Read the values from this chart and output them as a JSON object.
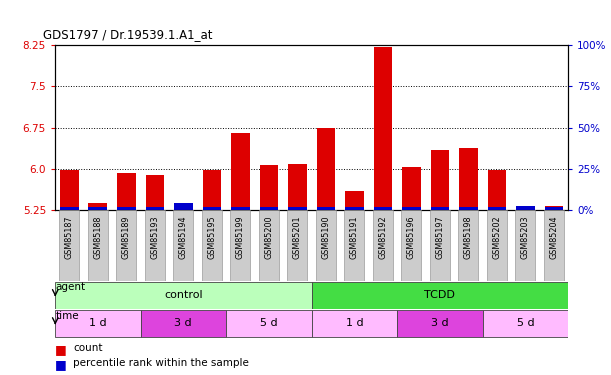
{
  "title": "GDS1797 / Dr.19539.1.A1_at",
  "samples": [
    "GSM85187",
    "GSM85188",
    "GSM85189",
    "GSM85193",
    "GSM85194",
    "GSM85195",
    "GSM85199",
    "GSM85200",
    "GSM85201",
    "GSM85190",
    "GSM85191",
    "GSM85192",
    "GSM85196",
    "GSM85197",
    "GSM85198",
    "GSM85202",
    "GSM85203",
    "GSM85204"
  ],
  "count_values": [
    5.97,
    5.37,
    5.93,
    5.88,
    5.28,
    5.97,
    6.65,
    6.07,
    6.08,
    6.75,
    5.59,
    8.22,
    6.03,
    6.35,
    6.38,
    5.97,
    5.32,
    5.32
  ],
  "percentile_values": [
    0.05,
    0.06,
    0.06,
    0.06,
    0.12,
    0.05,
    0.06,
    0.06,
    0.06,
    0.06,
    0.06,
    0.06,
    0.06,
    0.06,
    0.06,
    0.06,
    0.07,
    0.06
  ],
  "ymin": 5.25,
  "ymax": 8.25,
  "yticks_left": [
    5.25,
    6.0,
    6.75,
    7.5,
    8.25
  ],
  "yticks_right": [
    0,
    25,
    50,
    75,
    100
  ],
  "bar_color_red": "#dd0000",
  "bar_color_blue": "#0000cc",
  "agent_groups": [
    {
      "label": "control",
      "start": 0,
      "end": 8,
      "color": "#bbffbb"
    },
    {
      "label": "TCDD",
      "start": 9,
      "end": 17,
      "color": "#44dd44"
    }
  ],
  "time_groups": [
    {
      "label": "1 d",
      "start": 0,
      "end": 2,
      "color": "#ffbbff"
    },
    {
      "label": "3 d",
      "start": 3,
      "end": 5,
      "color": "#dd44dd"
    },
    {
      "label": "5 d",
      "start": 6,
      "end": 8,
      "color": "#ffbbff"
    },
    {
      "label": "1 d",
      "start": 9,
      "end": 11,
      "color": "#ffbbff"
    },
    {
      "label": "3 d",
      "start": 12,
      "end": 14,
      "color": "#dd44dd"
    },
    {
      "label": "5 d",
      "start": 15,
      "end": 17,
      "color": "#ffbbff"
    }
  ],
  "tick_label_bg": "#cccccc",
  "plot_bg": "#ffffff",
  "grid_color": "#000000"
}
